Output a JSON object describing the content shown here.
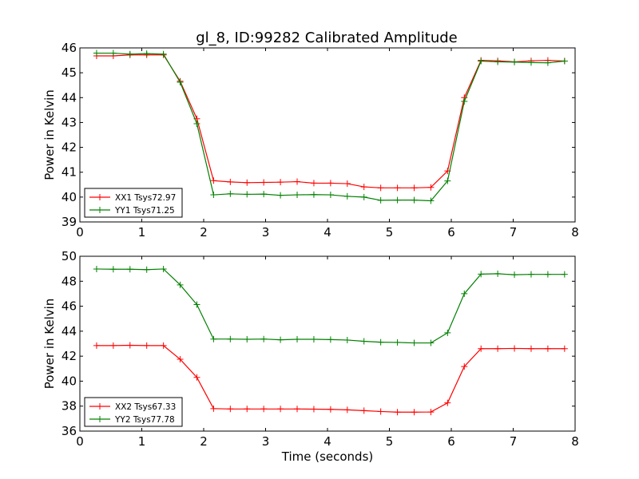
{
  "chart_data": [
    {
      "type": "line",
      "title": "gl_8, ID:99282 Calibrated Amplitude",
      "xlabel": "",
      "ylabel": "Power in Kelvin",
      "xlim": [
        0,
        8
      ],
      "ylim": [
        39,
        46
      ],
      "xticks": [
        "0",
        "1",
        "2",
        "3",
        "4",
        "5",
        "6",
        "7",
        "8"
      ],
      "yticks": [
        "39",
        "40",
        "41",
        "42",
        "43",
        "44",
        "45",
        "46"
      ],
      "legend_position": "lower-left",
      "grid": false,
      "x": [
        0.27,
        0.54,
        0.81,
        1.08,
        1.35,
        1.62,
        1.89,
        2.16,
        2.43,
        2.7,
        2.97,
        3.24,
        3.51,
        3.78,
        4.05,
        4.32,
        4.59,
        4.86,
        5.13,
        5.4,
        5.67,
        5.94,
        6.21,
        6.48,
        6.75,
        7.02,
        7.29,
        7.56,
        7.83
      ],
      "series": [
        {
          "name": "XX1 Tsys72.97",
          "color": "#ff0000",
          "values": [
            45.68,
            45.68,
            45.72,
            45.72,
            45.72,
            44.66,
            43.15,
            40.66,
            40.61,
            40.58,
            40.59,
            40.6,
            40.62,
            40.56,
            40.56,
            40.54,
            40.41,
            40.37,
            40.37,
            40.37,
            40.39,
            41.05,
            44.0,
            45.5,
            45.48,
            45.44,
            45.48,
            45.5,
            45.47
          ]
        },
        {
          "name": "YY1 Tsys71.25",
          "color": "#008000",
          "values": [
            45.79,
            45.79,
            45.75,
            45.77,
            45.75,
            44.62,
            42.95,
            40.09,
            40.13,
            40.11,
            40.12,
            40.07,
            40.09,
            40.1,
            40.09,
            40.03,
            40.0,
            39.87,
            39.88,
            39.88,
            39.85,
            40.65,
            43.85,
            45.47,
            45.44,
            45.43,
            45.41,
            45.4,
            45.47
          ]
        }
      ]
    },
    {
      "type": "line",
      "title": "",
      "xlabel": "Time (seconds)",
      "ylabel": "Power in Kelvin",
      "xlim": [
        0,
        8
      ],
      "ylim": [
        36,
        50
      ],
      "xticks": [
        "0",
        "1",
        "2",
        "3",
        "4",
        "5",
        "6",
        "7",
        "8"
      ],
      "yticks": [
        "36",
        "38",
        "40",
        "42",
        "44",
        "46",
        "48",
        "50"
      ],
      "legend_position": "lower-left",
      "grid": false,
      "x": [
        0.27,
        0.54,
        0.81,
        1.08,
        1.35,
        1.62,
        1.89,
        2.16,
        2.43,
        2.7,
        2.97,
        3.24,
        3.51,
        3.78,
        4.05,
        4.32,
        4.59,
        4.86,
        5.13,
        5.4,
        5.67,
        5.94,
        6.21,
        6.48,
        6.75,
        7.02,
        7.29,
        7.56,
        7.83
      ],
      "series": [
        {
          "name": "XX2 Tsys67.33",
          "color": "#ff0000",
          "values": [
            42.85,
            42.85,
            42.87,
            42.85,
            42.85,
            41.75,
            40.3,
            37.8,
            37.77,
            37.77,
            37.77,
            37.77,
            37.77,
            37.76,
            37.74,
            37.7,
            37.64,
            37.57,
            37.52,
            37.52,
            37.53,
            38.26,
            41.17,
            42.6,
            42.6,
            42.62,
            42.6,
            42.6,
            42.6
          ]
        },
        {
          "name": "YY2 Tsys77.78",
          "color": "#008000",
          "values": [
            48.98,
            48.96,
            48.96,
            48.93,
            48.98,
            47.71,
            46.13,
            43.37,
            43.37,
            43.35,
            43.37,
            43.31,
            43.35,
            43.35,
            43.33,
            43.29,
            43.19,
            43.12,
            43.1,
            43.06,
            43.06,
            43.87,
            47.0,
            48.57,
            48.6,
            48.52,
            48.55,
            48.55,
            48.55
          ]
        }
      ]
    }
  ]
}
